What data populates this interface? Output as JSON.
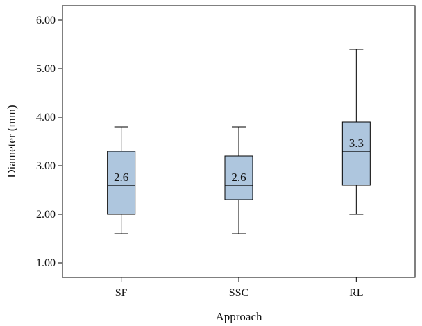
{
  "chart_data": {
    "type": "box",
    "xlabel": "Approach",
    "ylabel": "Diameter (mm)",
    "ylim": [
      0.7,
      6.3
    ],
    "yticks": [
      1.0,
      2.0,
      3.0,
      4.0,
      5.0,
      6.0
    ],
    "ytick_labels": [
      "1.00",
      "2.00",
      "3.00",
      "4.00",
      "5.00",
      "6.00"
    ],
    "categories": [
      "SF",
      "SSC",
      "RL"
    ],
    "boxes": [
      {
        "category": "SF",
        "whisker_low": 1.6,
        "q1": 2.0,
        "median": 2.6,
        "q3": 3.3,
        "whisker_high": 3.8,
        "median_label": "2.6"
      },
      {
        "category": "SSC",
        "whisker_low": 1.6,
        "q1": 2.3,
        "median": 2.6,
        "q3": 3.2,
        "whisker_high": 3.8,
        "median_label": "2.6"
      },
      {
        "category": "RL",
        "whisker_low": 2.0,
        "q1": 2.6,
        "median": 3.3,
        "q3": 3.9,
        "whisker_high": 5.4,
        "median_label": "3.3"
      }
    ],
    "grid": false,
    "legend": "none",
    "colors": {
      "box_fill": "#aec6de",
      "stroke": "#000000"
    }
  }
}
